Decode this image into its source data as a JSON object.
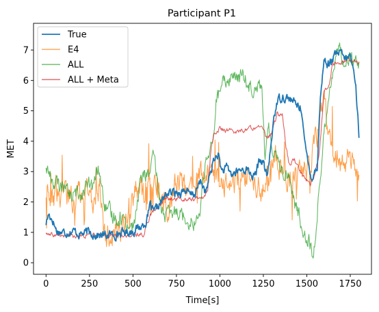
{
  "chart_data": {
    "type": "line",
    "title": "Participant P1",
    "xlabel": "Time[s]",
    "ylabel": "MET",
    "xlim": [
      -72,
      1872
    ],
    "ylim": [
      -0.38,
      7.88
    ],
    "xticks": [
      0,
      250,
      500,
      750,
      1000,
      1250,
      1500,
      1750
    ],
    "yticks": [
      0,
      1,
      2,
      3,
      4,
      5,
      6,
      7
    ],
    "grid": false,
    "legend_position": "upper left",
    "series": [
      {
        "name": "True",
        "color": "#1f77b4",
        "noise": 0.12,
        "points": [
          [
            0,
            1.3
          ],
          [
            15,
            1.6
          ],
          [
            40,
            1.4
          ],
          [
            60,
            1.05
          ],
          [
            100,
            1.0
          ],
          [
            150,
            1.05
          ],
          [
            200,
            0.95
          ],
          [
            250,
            1.0
          ],
          [
            300,
            0.9
          ],
          [
            350,
            0.9
          ],
          [
            400,
            0.95
          ],
          [
            450,
            1.0
          ],
          [
            500,
            1.05
          ],
          [
            550,
            1.2
          ],
          [
            580,
            1.4
          ],
          [
            600,
            1.9
          ],
          [
            620,
            1.6
          ],
          [
            650,
            1.9
          ],
          [
            700,
            2.3
          ],
          [
            750,
            2.3
          ],
          [
            800,
            2.4
          ],
          [
            830,
            2.2
          ],
          [
            860,
            2.3
          ],
          [
            890,
            2.7
          ],
          [
            920,
            2.3
          ],
          [
            960,
            3.3
          ],
          [
            990,
            3.6
          ],
          [
            1010,
            3.0
          ],
          [
            1040,
            3.1
          ],
          [
            1070,
            2.9
          ],
          [
            1100,
            3.0
          ],
          [
            1150,
            3.1
          ],
          [
            1200,
            2.8
          ],
          [
            1230,
            3.4
          ],
          [
            1250,
            3.3
          ],
          [
            1270,
            2.8
          ],
          [
            1290,
            3.6
          ],
          [
            1310,
            4.8
          ],
          [
            1330,
            5.3
          ],
          [
            1360,
            5.5
          ],
          [
            1400,
            5.4
          ],
          [
            1440,
            5.2
          ],
          [
            1470,
            5.1
          ],
          [
            1490,
            3.8
          ],
          [
            1510,
            3.2
          ],
          [
            1530,
            2.8
          ],
          [
            1560,
            3.2
          ],
          [
            1580,
            5.6
          ],
          [
            1600,
            6.7
          ],
          [
            1630,
            6.5
          ],
          [
            1660,
            6.8
          ],
          [
            1690,
            6.9
          ],
          [
            1720,
            6.7
          ],
          [
            1750,
            6.8
          ],
          [
            1780,
            6.0
          ],
          [
            1800,
            4.2
          ]
        ]
      },
      {
        "name": "E4",
        "color": "#ff7f0e",
        "noise": 0.35,
        "points": [
          [
            0,
            2.3
          ],
          [
            20,
            2.2
          ],
          [
            60,
            2.2
          ],
          [
            100,
            2.2
          ],
          [
            150,
            2.15
          ],
          [
            200,
            2.2
          ],
          [
            240,
            2.4
          ],
          [
            260,
            2.1
          ],
          [
            290,
            2.3
          ],
          [
            310,
            2.6
          ],
          [
            330,
            1.0
          ],
          [
            360,
            0.95
          ],
          [
            400,
            1.0
          ],
          [
            450,
            1.2
          ],
          [
            480,
            1.8
          ],
          [
            510,
            2.3
          ],
          [
            540,
            2.4
          ],
          [
            560,
            2.6
          ],
          [
            580,
            2.7
          ],
          [
            600,
            2.9
          ],
          [
            630,
            2.4
          ],
          [
            650,
            2.2
          ],
          [
            680,
            2.0
          ],
          [
            700,
            1.8
          ],
          [
            720,
            2.2
          ],
          [
            760,
            2.8
          ],
          [
            800,
            2.5
          ],
          [
            830,
            2.4
          ],
          [
            860,
            2.7
          ],
          [
            900,
            3.0
          ],
          [
            940,
            2.8
          ],
          [
            980,
            2.6
          ],
          [
            1020,
            2.5
          ],
          [
            1060,
            2.7
          ],
          [
            1100,
            2.6
          ],
          [
            1150,
            3.0
          ],
          [
            1200,
            2.6
          ],
          [
            1250,
            2.5
          ],
          [
            1290,
            3.0
          ],
          [
            1320,
            3.4
          ],
          [
            1360,
            3.1
          ],
          [
            1400,
            2.8
          ],
          [
            1430,
            2.9
          ],
          [
            1460,
            3.2
          ],
          [
            1500,
            3.1
          ],
          [
            1530,
            3.7
          ],
          [
            1560,
            4.3
          ],
          [
            1600,
            5.5
          ],
          [
            1620,
            4.2
          ],
          [
            1660,
            3.5
          ],
          [
            1700,
            3.1
          ],
          [
            1740,
            3.3
          ],
          [
            1780,
            3.2
          ],
          [
            1800,
            3.0
          ]
        ]
      },
      {
        "name": "ALL",
        "color": "#2ca02c",
        "noise": 0.22,
        "points": [
          [
            0,
            3.2
          ],
          [
            20,
            2.9
          ],
          [
            50,
            2.6
          ],
          [
            80,
            2.5
          ],
          [
            110,
            2.7
          ],
          [
            130,
            2.2
          ],
          [
            160,
            2.2
          ],
          [
            200,
            2.3
          ],
          [
            230,
            2.5
          ],
          [
            250,
            2.5
          ],
          [
            270,
            2.4
          ],
          [
            290,
            3.0
          ],
          [
            310,
            3.0
          ],
          [
            330,
            2.0
          ],
          [
            360,
            1.6
          ],
          [
            400,
            1.5
          ],
          [
            440,
            1.5
          ],
          [
            470,
            1.3
          ],
          [
            500,
            1.2
          ],
          [
            520,
            1.6
          ],
          [
            540,
            2.7
          ],
          [
            570,
            2.9
          ],
          [
            600,
            3.0
          ],
          [
            620,
            3.4
          ],
          [
            640,
            2.7
          ],
          [
            660,
            1.8
          ],
          [
            690,
            1.6
          ],
          [
            720,
            1.5
          ],
          [
            760,
            1.8
          ],
          [
            800,
            1.5
          ],
          [
            840,
            1.4
          ],
          [
            880,
            1.4
          ],
          [
            920,
            3.5
          ],
          [
            960,
            3.8
          ],
          [
            980,
            5.4
          ],
          [
            1010,
            5.7
          ],
          [
            1040,
            6.0
          ],
          [
            1070,
            6.2
          ],
          [
            1100,
            6.0
          ],
          [
            1130,
            6.2
          ],
          [
            1160,
            5.9
          ],
          [
            1190,
            5.8
          ],
          [
            1220,
            6.0
          ],
          [
            1240,
            5.8
          ],
          [
            1260,
            3.4
          ],
          [
            1280,
            4.3
          ],
          [
            1300,
            3.9
          ],
          [
            1320,
            3.7
          ],
          [
            1360,
            3.0
          ],
          [
            1400,
            2.9
          ],
          [
            1420,
            2.2
          ],
          [
            1450,
            1.6
          ],
          [
            1480,
            1.1
          ],
          [
            1510,
            0.8
          ],
          [
            1530,
            0.3
          ],
          [
            1550,
            0.6
          ],
          [
            1570,
            2.5
          ],
          [
            1600,
            4.2
          ],
          [
            1630,
            5.8
          ],
          [
            1660,
            6.6
          ],
          [
            1690,
            7.1
          ],
          [
            1720,
            6.6
          ],
          [
            1750,
            6.8
          ],
          [
            1780,
            6.5
          ],
          [
            1800,
            6.4
          ]
        ]
      },
      {
        "name": "ALL + Meta",
        "color": "#d62728",
        "noise": 0.06,
        "points": [
          [
            0,
            1.0
          ],
          [
            10,
            0.9
          ],
          [
            100,
            0.88
          ],
          [
            200,
            0.88
          ],
          [
            300,
            0.88
          ],
          [
            310,
            0.95
          ],
          [
            330,
            0.88
          ],
          [
            400,
            0.9
          ],
          [
            500,
            0.9
          ],
          [
            560,
            0.92
          ],
          [
            600,
            1.6
          ],
          [
            640,
            1.8
          ],
          [
            680,
            2.1
          ],
          [
            720,
            2.1
          ],
          [
            760,
            2.1
          ],
          [
            800,
            2.1
          ],
          [
            850,
            2.1
          ],
          [
            900,
            2.1
          ],
          [
            930,
            2.4
          ],
          [
            950,
            3.8
          ],
          [
            970,
            4.3
          ],
          [
            1000,
            4.4
          ],
          [
            1050,
            4.35
          ],
          [
            1100,
            4.3
          ],
          [
            1150,
            4.4
          ],
          [
            1200,
            4.45
          ],
          [
            1220,
            4.6
          ],
          [
            1240,
            4.5
          ],
          [
            1260,
            4.2
          ],
          [
            1280,
            4.1
          ],
          [
            1300,
            4.3
          ],
          [
            1330,
            4.9
          ],
          [
            1360,
            4.9
          ],
          [
            1380,
            3.8
          ],
          [
            1400,
            3.2
          ],
          [
            1430,
            3.4
          ],
          [
            1460,
            3.0
          ],
          [
            1490,
            2.8
          ],
          [
            1520,
            2.6
          ],
          [
            1540,
            2.8
          ],
          [
            1570,
            3.5
          ],
          [
            1600,
            5.6
          ],
          [
            1630,
            5.9
          ],
          [
            1650,
            6.6
          ],
          [
            1680,
            6.5
          ],
          [
            1710,
            6.6
          ],
          [
            1740,
            6.7
          ],
          [
            1770,
            6.6
          ],
          [
            1800,
            6.6
          ]
        ]
      }
    ]
  }
}
